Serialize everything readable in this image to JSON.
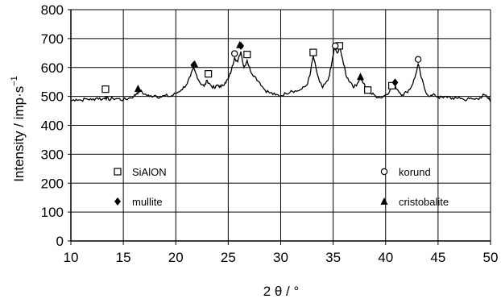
{
  "chart_data": {
    "type": "line",
    "xlabel": "2 θ / °",
    "ylabel": "Intensity / imp·s",
    "ylabel_exponent": "−1",
    "xlim": [
      10,
      50
    ],
    "ylim": [
      0,
      800
    ],
    "x_ticks": [
      10,
      15,
      20,
      25,
      30,
      35,
      40,
      45,
      50
    ],
    "y_ticks": [
      0,
      100,
      200,
      300,
      400,
      500,
      600,
      700,
      800
    ],
    "grid": true,
    "series": [
      {
        "line_color": "#000000",
        "points": [
          [
            10,
            485
          ],
          [
            10.5,
            490
          ],
          [
            11,
            487
          ],
          [
            11.5,
            492
          ],
          [
            12,
            488
          ],
          [
            12.5,
            495
          ],
          [
            13,
            490
          ],
          [
            13.3,
            497
          ],
          [
            13.6,
            489
          ],
          [
            14,
            493
          ],
          [
            14.5,
            492
          ],
          [
            15,
            488
          ],
          [
            15.5,
            493
          ],
          [
            16,
            500
          ],
          [
            16.3,
            512
          ],
          [
            16.6,
            520
          ],
          [
            17,
            508
          ],
          [
            17.5,
            500
          ],
          [
            18,
            504
          ],
          [
            18.5,
            497
          ],
          [
            19,
            503
          ],
          [
            19.5,
            500
          ],
          [
            20,
            510
          ],
          [
            20.5,
            522
          ],
          [
            21,
            540
          ],
          [
            21.4,
            570
          ],
          [
            21.7,
            597
          ],
          [
            22,
            572
          ],
          [
            22.3,
            548
          ],
          [
            22.7,
            535
          ],
          [
            23,
            555
          ],
          [
            23.3,
            540
          ],
          [
            23.7,
            528
          ],
          [
            24,
            540
          ],
          [
            24.3,
            532
          ],
          [
            24.7,
            548
          ],
          [
            25,
            560
          ],
          [
            25.3,
            590
          ],
          [
            25.6,
            635
          ],
          [
            25.9,
            620
          ],
          [
            26.2,
            655
          ],
          [
            26.5,
            600
          ],
          [
            26.8,
            625
          ],
          [
            27.1,
            590
          ],
          [
            27.5,
            570
          ],
          [
            28,
            548
          ],
          [
            28.5,
            522
          ],
          [
            29,
            512
          ],
          [
            29.5,
            505
          ],
          [
            30,
            502
          ],
          [
            30.5,
            510
          ],
          [
            31,
            520
          ],
          [
            31.5,
            518
          ],
          [
            32,
            525
          ],
          [
            32.5,
            540
          ],
          [
            32.8,
            575
          ],
          [
            33.1,
            640
          ],
          [
            33.4,
            590
          ],
          [
            33.7,
            550
          ],
          [
            34,
            530
          ],
          [
            34.5,
            555
          ],
          [
            34.8,
            600
          ],
          [
            35.1,
            665
          ],
          [
            35.4,
            650
          ],
          [
            35.7,
            665
          ],
          [
            36,
            610
          ],
          [
            36.3,
            565
          ],
          [
            36.7,
            548
          ],
          [
            37,
            532
          ],
          [
            37.3,
            545
          ],
          [
            37.6,
            565
          ],
          [
            37.9,
            545
          ],
          [
            38.2,
            520
          ],
          [
            38.6,
            510
          ],
          [
            39,
            503
          ],
          [
            39.5,
            495
          ],
          [
            40,
            505
          ],
          [
            40.4,
            520
          ],
          [
            40.8,
            542
          ],
          [
            41.2,
            520
          ],
          [
            41.6,
            505
          ],
          [
            42,
            515
          ],
          [
            42.4,
            530
          ],
          [
            42.8,
            565
          ],
          [
            43.1,
            612
          ],
          [
            43.4,
            565
          ],
          [
            43.8,
            518
          ],
          [
            44.2,
            500
          ],
          [
            44.7,
            505
          ],
          [
            45,
            498
          ],
          [
            45.5,
            495
          ],
          [
            46,
            500
          ],
          [
            46.5,
            490
          ],
          [
            47,
            497
          ],
          [
            47.5,
            488
          ],
          [
            48,
            492
          ],
          [
            48.5,
            490
          ],
          [
            49,
            496
          ],
          [
            49.4,
            505
          ],
          [
            49.8,
            492
          ],
          [
            50,
            490
          ]
        ]
      }
    ],
    "markers": [
      {
        "phase": "SiAlON",
        "symbol": "square",
        "x": 13.3,
        "y": 525
      },
      {
        "phase": "SiAlON",
        "symbol": "square",
        "x": 23.1,
        "y": 578
      },
      {
        "phase": "SiAlON",
        "symbol": "square",
        "x": 26.8,
        "y": 645
      },
      {
        "phase": "SiAlON",
        "symbol": "square",
        "x": 33.1,
        "y": 652
      },
      {
        "phase": "SiAlON",
        "symbol": "square",
        "x": 35.6,
        "y": 675
      },
      {
        "phase": "SiAlON",
        "symbol": "square",
        "x": 38.3,
        "y": 522
      },
      {
        "phase": "SiAlON",
        "symbol": "square",
        "x": 40.6,
        "y": 537
      },
      {
        "phase": "korund",
        "symbol": "circle",
        "x": 25.6,
        "y": 648
      },
      {
        "phase": "korund",
        "symbol": "circle",
        "x": 35.2,
        "y": 675
      },
      {
        "phase": "korund",
        "symbol": "circle",
        "x": 43.1,
        "y": 628
      },
      {
        "phase": "mullite",
        "symbol": "diamond",
        "x": 21.7,
        "y": 608
      },
      {
        "phase": "mullite",
        "symbol": "diamond",
        "x": 26.2,
        "y": 675
      },
      {
        "phase": "mullite",
        "symbol": "diamond",
        "x": 40.9,
        "y": 548
      },
      {
        "phase": "cristobalite",
        "symbol": "triangle",
        "x": 16.4,
        "y": 527
      },
      {
        "phase": "cristobalite",
        "symbol": "triangle",
        "x": 21.8,
        "y": 611
      },
      {
        "phase": "cristobalite",
        "symbol": "triangle",
        "x": 26.1,
        "y": 678
      },
      {
        "phase": "cristobalite",
        "symbol": "triangle",
        "x": 37.6,
        "y": 568
      }
    ],
    "legend": [
      {
        "label": "SiAlON",
        "symbol": "square"
      },
      {
        "label": "korund",
        "symbol": "circle"
      },
      {
        "label": "mullite",
        "symbol": "diamond"
      },
      {
        "label": "cristobalite",
        "symbol": "triangle"
      }
    ]
  }
}
